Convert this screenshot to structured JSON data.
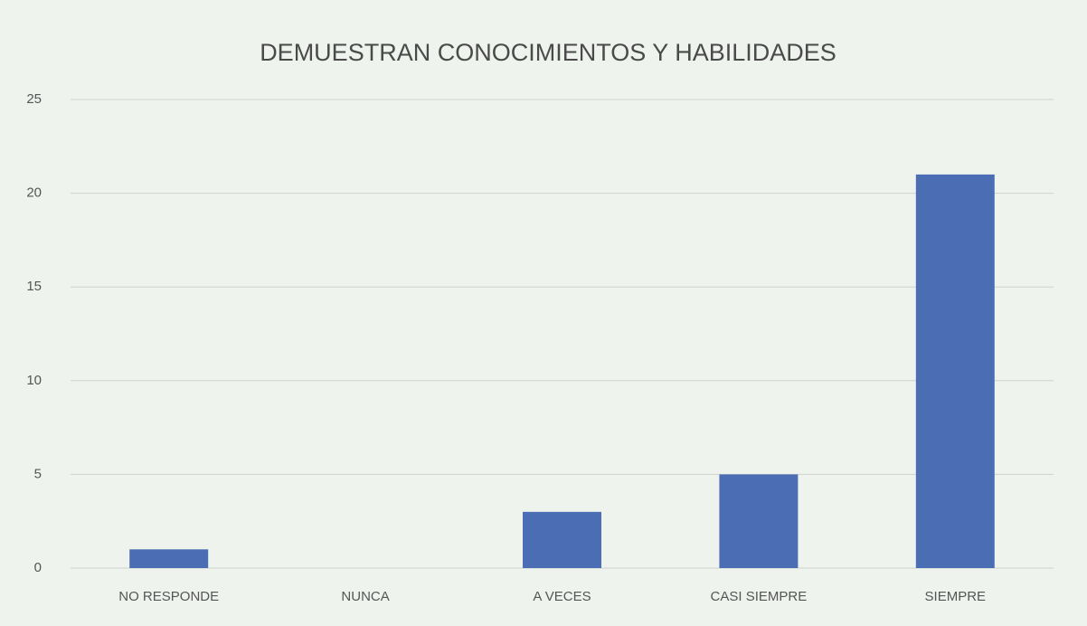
{
  "chart_data": {
    "type": "bar",
    "title": "DEMUESTRAN CONOCIMIENTOS Y HABILIDADES",
    "categories": [
      "NO RESPONDE",
      "NUNCA",
      "A VECES",
      "CASI SIEMPRE",
      "SIEMPRE"
    ],
    "values": [
      1,
      0,
      3,
      5,
      21
    ],
    "color": "#4a6db3",
    "ylim": [
      0,
      25
    ],
    "yticks": [
      0,
      5,
      10,
      15,
      20,
      25
    ],
    "grid": true
  }
}
